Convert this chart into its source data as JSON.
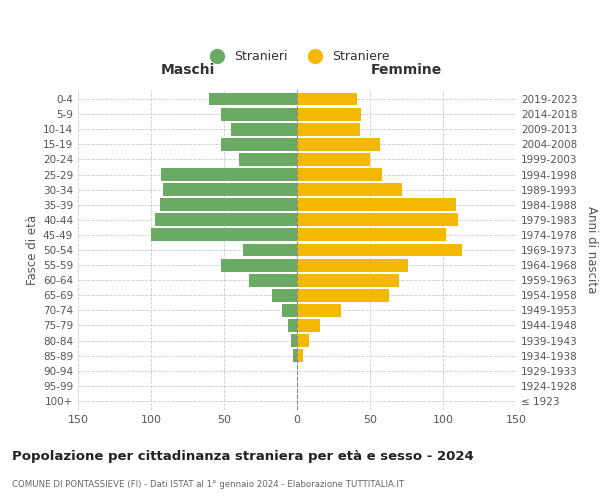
{
  "age_groups": [
    "100+",
    "95-99",
    "90-94",
    "85-89",
    "80-84",
    "75-79",
    "70-74",
    "65-69",
    "60-64",
    "55-59",
    "50-54",
    "45-49",
    "40-44",
    "35-39",
    "30-34",
    "25-29",
    "20-24",
    "15-19",
    "10-14",
    "5-9",
    "0-4"
  ],
  "birth_years": [
    "≤ 1923",
    "1924-1928",
    "1929-1933",
    "1934-1938",
    "1939-1943",
    "1944-1948",
    "1949-1953",
    "1954-1958",
    "1959-1963",
    "1964-1968",
    "1969-1973",
    "1974-1978",
    "1979-1983",
    "1984-1988",
    "1989-1993",
    "1994-1998",
    "1999-2003",
    "2004-2008",
    "2009-2013",
    "2014-2018",
    "2019-2023"
  ],
  "maschi": [
    0,
    0,
    0,
    3,
    4,
    6,
    10,
    17,
    33,
    52,
    37,
    100,
    97,
    94,
    92,
    93,
    40,
    52,
    45,
    52,
    60
  ],
  "femmine": [
    0,
    0,
    0,
    4,
    8,
    16,
    30,
    63,
    70,
    76,
    113,
    102,
    110,
    109,
    72,
    58,
    50,
    57,
    43,
    44,
    41
  ],
  "color_maschi": "#6aaa64",
  "color_femmine": "#f5b800",
  "title": "Popolazione per cittadinanza straniera per età e sesso - 2024",
  "subtitle": "COMUNE DI PONTASSIEVE (FI) - Dati ISTAT al 1° gennaio 2024 - Elaborazione TUTTITALIA.IT",
  "xlabel_left": "Maschi",
  "xlabel_right": "Femmine",
  "ylabel_left": "Fasce di età",
  "ylabel_right": "Anni di nascita",
  "legend_maschi": "Stranieri",
  "legend_femmine": "Straniere",
  "xlim": 150,
  "bg_color": "#ffffff",
  "grid_color": "#cccccc",
  "bar_height": 0.85,
  "fig_width": 6.0,
  "fig_height": 5.0,
  "dpi": 100
}
